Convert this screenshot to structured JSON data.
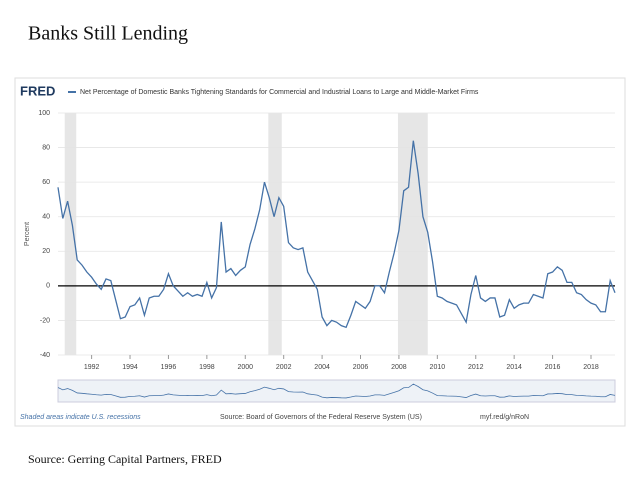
{
  "page": {
    "title": "Banks Still Lending",
    "source": "Source: Gerring Capital Partners, FRED"
  },
  "chart_data": {
    "type": "line",
    "logo": "FRED",
    "y_label": "Percent",
    "note": "Shaded areas indicate U.S. recessions",
    "source": "Source: Board of Governors of the Federal Reserve System (US)",
    "url": "myf.red/g/nRoN",
    "xlim": [
      1990.25,
      2019.25
    ],
    "xticks": [
      1992,
      1994,
      1996,
      1998,
      2000,
      2002,
      2004,
      2006,
      2008,
      2010,
      2012,
      2014,
      2016,
      2018
    ],
    "ylim": [
      -40,
      100
    ],
    "yticks": [
      -40,
      -20,
      0,
      20,
      40,
      60,
      80,
      100
    ],
    "grid": true,
    "recessions": [
      [
        1990.6,
        1991.2
      ],
      [
        2001.2,
        2001.9
      ],
      [
        2007.95,
        2009.5
      ]
    ],
    "x": [
      1990.25,
      1990.5,
      1990.75,
      1991,
      1991.25,
      1991.5,
      1991.75,
      1992,
      1992.25,
      1992.5,
      1992.75,
      1993,
      1993.25,
      1993.5,
      1993.75,
      1994,
      1994.25,
      1994.5,
      1994.75,
      1995,
      1995.25,
      1995.5,
      1995.75,
      1996,
      1996.25,
      1996.5,
      1996.75,
      1997,
      1997.25,
      1997.5,
      1997.75,
      1998,
      1998.25,
      1998.5,
      1998.75,
      1999,
      1999.25,
      1999.5,
      1999.75,
      2000,
      2000.25,
      2000.5,
      2000.75,
      2001,
      2001.25,
      2001.5,
      2001.75,
      2002,
      2002.25,
      2002.5,
      2002.75,
      2003,
      2003.25,
      2003.5,
      2003.75,
      2004,
      2004.25,
      2004.5,
      2004.75,
      2005,
      2005.25,
      2005.5,
      2005.75,
      2006,
      2006.25,
      2006.5,
      2006.75,
      2007,
      2007.25,
      2007.5,
      2007.75,
      2008,
      2008.25,
      2008.5,
      2008.75,
      2009,
      2009.25,
      2009.5,
      2009.75,
      2010,
      2010.25,
      2010.5,
      2010.75,
      2011,
      2011.25,
      2011.5,
      2011.75,
      2012,
      2012.25,
      2012.5,
      2012.75,
      2013,
      2013.25,
      2013.5,
      2013.75,
      2014,
      2014.25,
      2014.5,
      2014.75,
      2015,
      2015.25,
      2015.5,
      2015.75,
      2016,
      2016.25,
      2016.5,
      2016.75,
      2017,
      2017.25,
      2017.5,
      2017.75,
      2018,
      2018.25,
      2018.5,
      2018.75,
      2019,
      2019.25
    ],
    "series": [
      {
        "name": "Net Percentage of Domestic Banks Tightening Standards for Commercial and Industrial Loans to Large and Middle-Market Firms",
        "color": "#4572a7",
        "values": [
          57,
          39,
          49,
          35,
          15,
          12,
          8,
          5,
          1,
          -2,
          4,
          3,
          -8,
          -19,
          -18,
          -12,
          -11,
          -7,
          -17,
          -7,
          -6,
          -6,
          -2,
          7,
          0,
          -3,
          -6,
          -4,
          -6,
          -5,
          -6,
          2,
          -7,
          -1,
          37,
          8,
          10,
          6,
          9,
          11,
          24,
          33,
          44,
          60,
          51,
          40,
          51,
          46,
          25,
          22,
          21,
          22,
          8,
          3,
          -2,
          -18,
          -23,
          -20,
          -21,
          -23,
          -24,
          -17,
          -9,
          -11,
          -13,
          -9,
          0,
          0,
          -4,
          8,
          19,
          32,
          55,
          57,
          84,
          65,
          40,
          31,
          14,
          -6,
          -7,
          -9,
          -10,
          -11,
          -16,
          -21,
          -5,
          6,
          -7,
          -9,
          -7,
          -7,
          -18,
          -17,
          -8,
          -13,
          -11,
          -10,
          -10,
          -5,
          -6,
          -7,
          7,
          8,
          11,
          9,
          2,
          2,
          -4,
          -5,
          -8,
          -10,
          -11,
          -15,
          -15,
          3,
          -4
        ]
      }
    ]
  }
}
